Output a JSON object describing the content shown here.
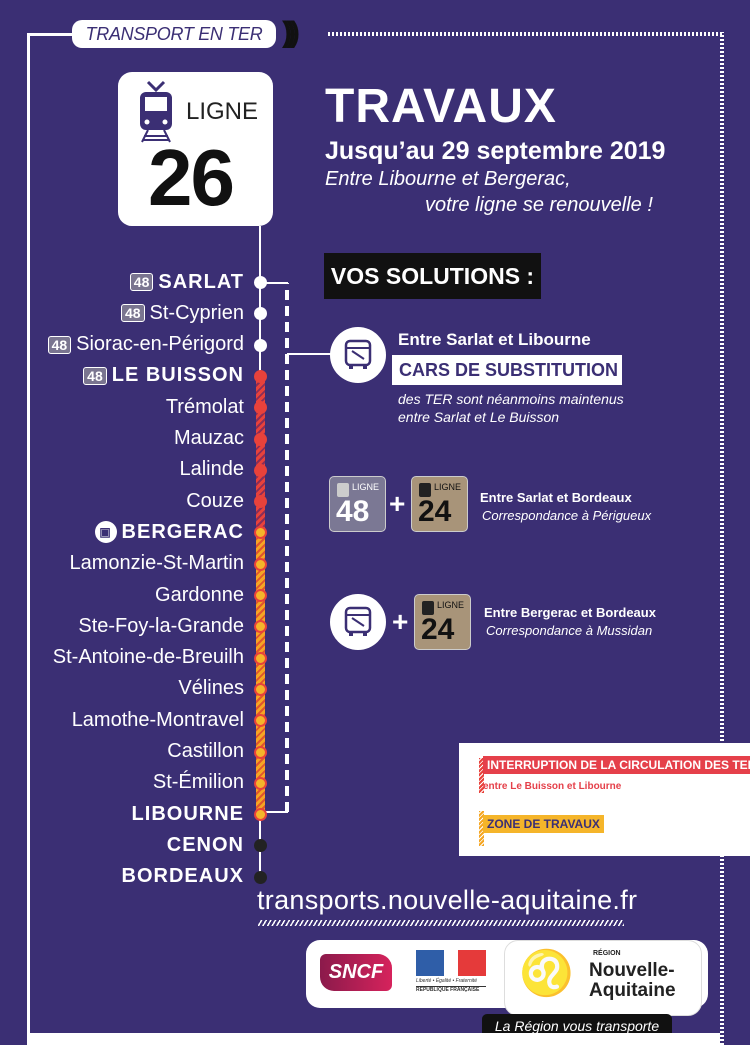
{
  "header": {
    "tag": "TRANSPORT EN TER",
    "waves": ")))"
  },
  "ligne": {
    "label": "LIGNE",
    "number": "26"
  },
  "title": "TRAVAUX",
  "date": "Jusqu’au 29 septembre 2019",
  "subtitle_1": "Entre Libourne et Bergerac,",
  "subtitle_2": "votre ligne se renouvelle !",
  "solutions_heading": "VOS SOLUTIONS :",
  "stations": [
    {
      "name": "SARLAT",
      "badge": "48",
      "bold": true,
      "status": "white"
    },
    {
      "name": "St-Cyprien",
      "badge": "48",
      "bold": false,
      "status": "white"
    },
    {
      "name": "Siorac-en-Périgord",
      "badge": "48",
      "bold": false,
      "status": "white"
    },
    {
      "name": "LE BUISSON",
      "badge": "48",
      "bold": true,
      "status": "red"
    },
    {
      "name": "Trémolat",
      "bold": false,
      "status": "red"
    },
    {
      "name": "Mauzac",
      "bold": false,
      "status": "red"
    },
    {
      "name": "Lalinde",
      "bold": false,
      "status": "red"
    },
    {
      "name": "Couze",
      "bold": false,
      "status": "red"
    },
    {
      "name": "BERGERAC",
      "bus": true,
      "bold": true,
      "status": "orange"
    },
    {
      "name": "Lamonzie-St-Martin",
      "bold": false,
      "status": "orange"
    },
    {
      "name": "Gardonne",
      "bold": false,
      "status": "orange"
    },
    {
      "name": "Ste-Foy-la-Grande",
      "bold": false,
      "status": "orange"
    },
    {
      "name": "St-Antoine-de-Breuilh",
      "bold": false,
      "status": "orange"
    },
    {
      "name": "Vélines",
      "bold": false,
      "status": "orange"
    },
    {
      "name": "Lamothe-Montravel",
      "bold": false,
      "status": "orange"
    },
    {
      "name": "Castillon",
      "bold": false,
      "status": "orange"
    },
    {
      "name": "St-Émilion",
      "bold": false,
      "status": "orange"
    },
    {
      "name": "LIBOURNE",
      "bold": true,
      "status": "orange"
    },
    {
      "name": "CENON",
      "bold": true,
      "status": "black"
    },
    {
      "name": "BORDEAUX",
      "bold": true,
      "status": "black"
    }
  ],
  "solution_1": {
    "heading": "Entre Sarlat et Libourne",
    "box": "CARS DE SUBSTITUTION",
    "note_1": "des TER sont néanmoins maintenus",
    "note_2": "entre Sarlat et Le Buisson"
  },
  "solution_2": {
    "line_a_label": "LIGNE",
    "line_a": "48",
    "plus": "+",
    "line_b_label": "LIGNE",
    "line_b": "24",
    "heading": "Entre Sarlat et Bordeaux",
    "sub": "Correspondance à Périgueux"
  },
  "solution_3": {
    "plus": "+",
    "line_label": "LIGNE",
    "line": "24",
    "heading": "Entre Bergerac et Bordeaux",
    "sub": "Correspondance à Mussidan"
  },
  "legend": {
    "interruption": "INTERRUPTION DE LA CIRCULATION DES TER",
    "interruption_sub": "entre Le Buisson et Libourne",
    "zone": "ZONE DE TRAVAUX"
  },
  "url": "transports.nouvelle-aquitaine.fr",
  "logos": {
    "sncf": "SNCF",
    "rf_motto": "Liberté • Égalité • Fraternité",
    "rf_name": "RÉPUBLIQUE FRANÇAISE",
    "region_small": "RÉGION",
    "region_name_1": "Nouvelle-",
    "region_name_2": "Aquitaine"
  },
  "slogan": "La Région vous transporte",
  "colors": {
    "background": "#3b2f74",
    "red": "#e8423b",
    "orange": "#f5a623",
    "line48": "#7b7894",
    "line24": "#a89479"
  }
}
